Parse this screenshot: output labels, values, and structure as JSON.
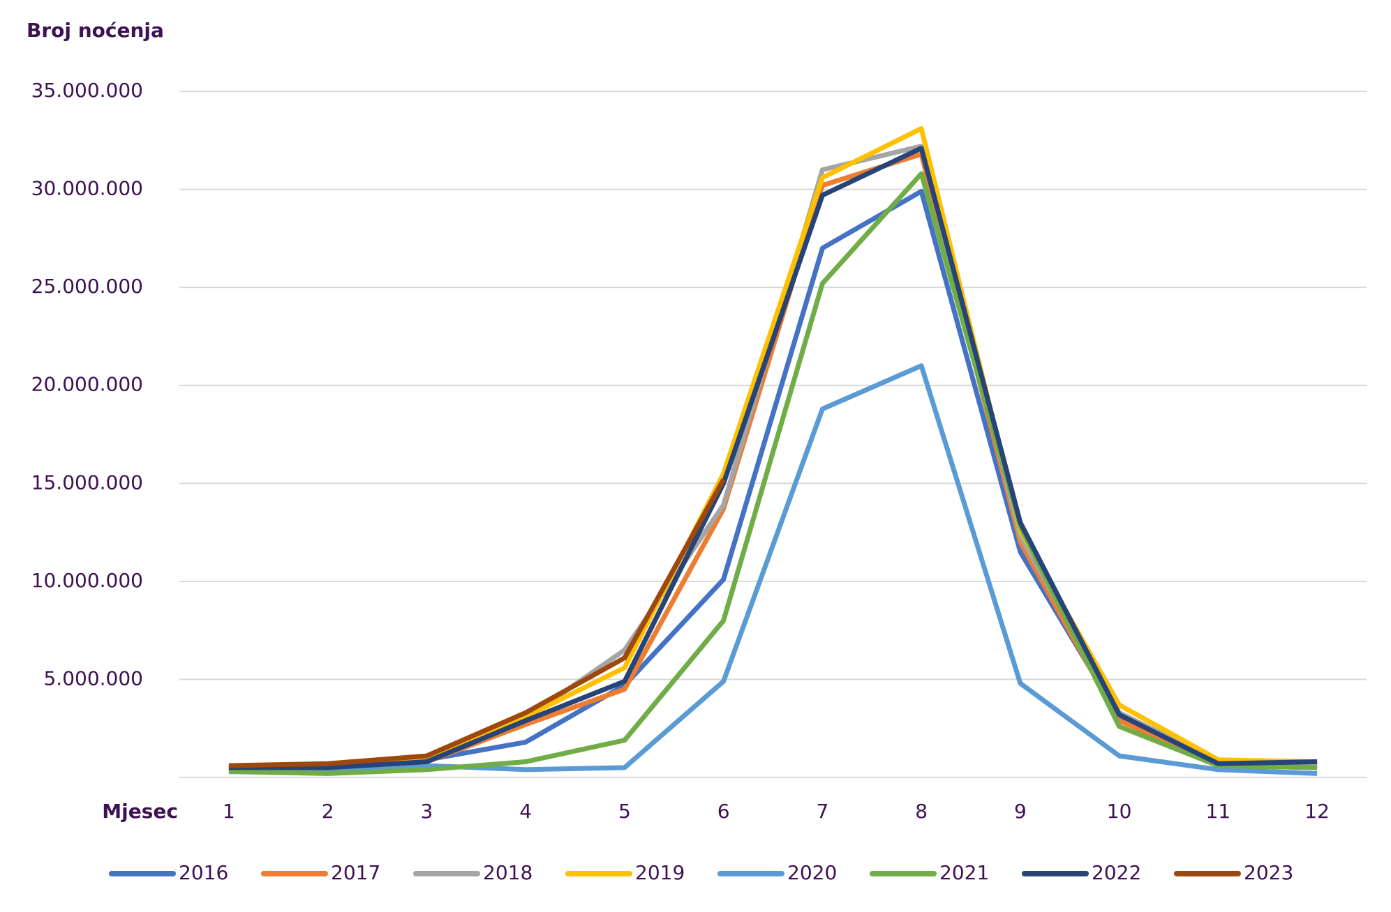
{
  "chart_data": {
    "type": "line",
    "title": "Broj noćenja",
    "x_label": "Mjesec",
    "categories": [
      "1",
      "2",
      "3",
      "4",
      "5",
      "6",
      "7",
      "8",
      "9",
      "10",
      "11",
      "12"
    ],
    "series": [
      {
        "name": "2016",
        "color": "#4472c4",
        "values": [
          500000,
          600000,
          900000,
          1800000,
          4700000,
          10100000,
          27000000,
          29900000,
          11500000,
          3100000,
          600000,
          500000
        ]
      },
      {
        "name": "2017",
        "color": "#ed7d31",
        "values": [
          500000,
          600000,
          800000,
          2700000,
          4500000,
          13700000,
          30200000,
          31800000,
          12000000,
          2900000,
          700000,
          600000
        ]
      },
      {
        "name": "2018",
        "color": "#a5a5a5",
        "values": [
          500000,
          600000,
          900000,
          3000000,
          6500000,
          13900000,
          31000000,
          32200000,
          12300000,
          3300000,
          800000,
          700000
        ]
      },
      {
        "name": "2019",
        "color": "#ffc000",
        "values": [
          500000,
          600000,
          900000,
          3100000,
          5600000,
          15500000,
          30600000,
          33100000,
          12600000,
          3700000,
          900000,
          800000
        ]
      },
      {
        "name": "2020",
        "color": "#5b9bd5",
        "values": [
          400000,
          400000,
          600000,
          400000,
          500000,
          4900000,
          18800000,
          21000000,
          4800000,
          1100000,
          400000,
          200000
        ]
      },
      {
        "name": "2021",
        "color": "#70ad47",
        "values": [
          300000,
          200000,
          400000,
          800000,
          1900000,
          8000000,
          25200000,
          30800000,
          12800000,
          2600000,
          600000,
          500000
        ]
      },
      {
        "name": "2022",
        "color": "#264478",
        "values": [
          500000,
          500000,
          800000,
          2900000,
          4900000,
          15000000,
          29700000,
          32100000,
          13000000,
          3200000,
          700000,
          800000
        ]
      },
      {
        "name": "2023",
        "color": "#9e480e",
        "values": [
          600000,
          700000,
          1100000,
          3300000,
          6100000,
          15200000,
          null,
          null,
          null,
          null,
          null,
          null
        ]
      }
    ],
    "ylim": [
      0,
      35000000
    ],
    "yticks": [
      {
        "value": 5000000,
        "label": "5.000.000"
      },
      {
        "value": 10000000,
        "label": "10.000.000"
      },
      {
        "value": 15000000,
        "label": "15.000.000"
      },
      {
        "value": 20000000,
        "label": "20.000.000"
      },
      {
        "value": 25000000,
        "label": "25.000.000"
      },
      {
        "value": 30000000,
        "label": "30.000.000"
      },
      {
        "value": 35000000,
        "label": "35.000.000"
      }
    ],
    "grid": true,
    "legend": "bottom"
  }
}
